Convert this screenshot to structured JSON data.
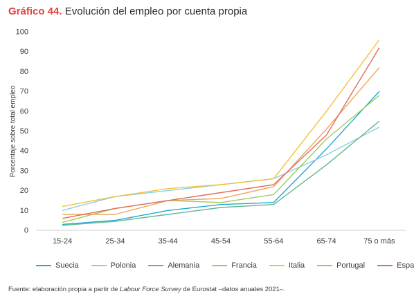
{
  "header": {
    "number": "Gráfico 44.",
    "text": "Evolución del empleo por cuenta propia"
  },
  "source": {
    "prefix": "Fuente: elaboración propia a partir de ",
    "italic": "Labour Force Survey",
    "suffix": " de Eurostat –datos anuales 2021–."
  },
  "chart_data": {
    "type": "line",
    "title": "Evolución del empleo por cuenta propia",
    "xlabel": "",
    "ylabel": "Porcentaje sobre total empleo",
    "categories": [
      "15-24",
      "25-34",
      "35-44",
      "45-54",
      "55-64",
      "65-74",
      "75 o más"
    ],
    "ylim": [
      0,
      100
    ],
    "yticks": [
      0,
      10,
      20,
      30,
      40,
      50,
      60,
      70,
      80,
      90,
      100
    ],
    "grid": false,
    "legend_position": "bottom",
    "series": [
      {
        "name": "Suecia",
        "color": "#1fa8d6",
        "values": [
          3,
          5,
          10,
          13,
          14,
          41,
          70
        ]
      },
      {
        "name": "Polonia",
        "color": "#8fcbe6",
        "values": [
          10,
          17,
          20,
          23,
          26,
          38,
          52
        ]
      },
      {
        "name": "Alemania",
        "color": "#5fb98a",
        "values": [
          2.5,
          4.5,
          8,
          11.5,
          13,
          33,
          55
        ]
      },
      {
        "name": "Francia",
        "color": "#9ccc5a",
        "values": [
          4,
          11,
          15,
          14,
          18,
          46,
          68
        ]
      },
      {
        "name": "Italia",
        "color": "#f3c13a",
        "values": [
          12,
          17,
          21,
          23,
          26,
          60,
          96
        ]
      },
      {
        "name": "Portugal",
        "color": "#eea55b",
        "values": [
          8,
          8,
          15,
          16,
          22,
          51,
          82
        ]
      },
      {
        "name": "España",
        "color": "#e36b5b",
        "values": [
          6,
          11,
          15,
          19,
          23,
          48,
          92
        ]
      }
    ]
  }
}
